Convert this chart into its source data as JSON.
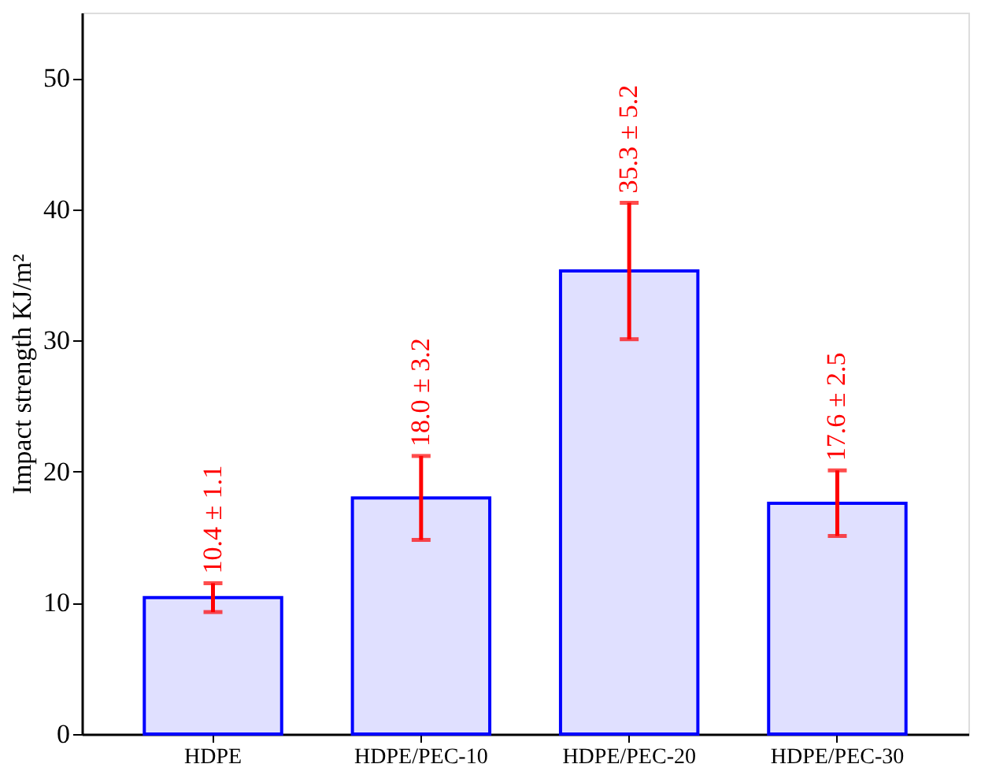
{
  "chart_data": {
    "type": "bar",
    "ylabel": "Impact strength KJ/m²",
    "categories": [
      "HDPE",
      "HDPE/PEC-10",
      "HDPE/PEC-20",
      "HDPE/PEC-30"
    ],
    "values": [
      10.4,
      18.0,
      35.3,
      17.6
    ],
    "color": "#0000ff",
    "errors": [
      1.1,
      3.2,
      5.2,
      2.5
    ],
    "value_labels": [
      "10.4 ± 1.1",
      "18.0 ± 3.2",
      "35.3 ± 5.2",
      "17.6 ± 2.5"
    ],
    "ylim": [
      0,
      55
    ],
    "yticks": [
      0,
      10,
      20,
      30,
      40,
      50
    ],
    "grid": false
  }
}
